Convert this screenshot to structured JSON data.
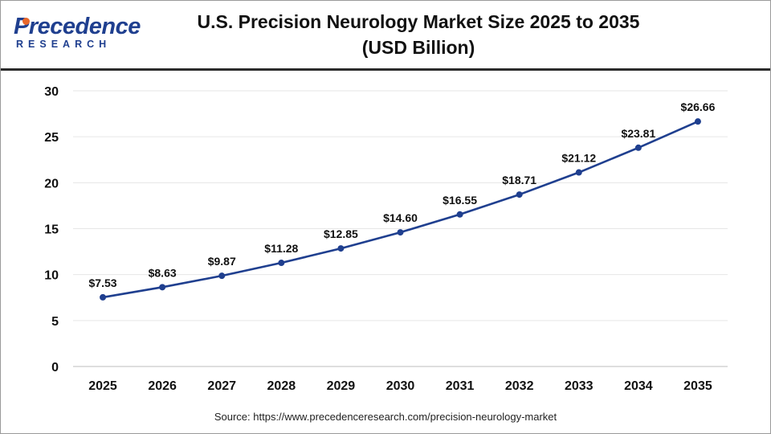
{
  "logo": {
    "word": "Precedence",
    "sub": "RESEARCH"
  },
  "header": {
    "title_line1": "U.S. Precision Neurology Market Size 2025 to 2035",
    "title_line2": "(USD Billion)"
  },
  "source": "Source: https://www.precedenceresearch.com/precision-neurology-market",
  "colors": {
    "line": "#1f3f8f",
    "point": "#1f3f8f",
    "grid": "#e6e6e6",
    "rule": "#2b2b2b"
  },
  "chart_data": {
    "type": "line",
    "title": "U.S. Precision Neurology Market Size 2025 to 2035 (USD Billion)",
    "categories": [
      "2025",
      "2026",
      "2027",
      "2028",
      "2029",
      "2030",
      "2031",
      "2032",
      "2033",
      "2034",
      "2035"
    ],
    "values": [
      7.53,
      8.63,
      9.87,
      11.28,
      12.85,
      14.6,
      16.55,
      18.71,
      21.12,
      23.81,
      26.66
    ],
    "data_labels": [
      "$7.53",
      "$8.63",
      "$9.87",
      "$11.28",
      "$12.85",
      "$14.60",
      "$16.55",
      "$18.71",
      "$21.12",
      "$23.81",
      "$26.66"
    ],
    "yticks": [
      "0",
      "5",
      "10",
      "15",
      "20",
      "25",
      "30"
    ],
    "ylim": [
      0,
      30
    ],
    "grid": true,
    "legend": "none"
  }
}
